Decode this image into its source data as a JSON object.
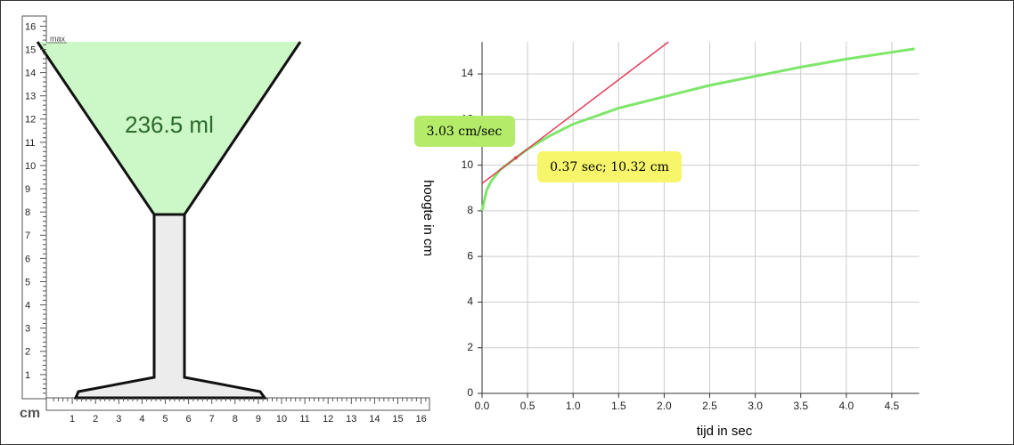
{
  "glass": {
    "volume_label": "236.5 ml",
    "max_label": "max",
    "unit_label": "cm",
    "ruler_y_labels": [
      "1",
      "2",
      "3",
      "4",
      "5",
      "6",
      "7",
      "8",
      "9",
      "10",
      "11",
      "12",
      "13",
      "14",
      "15",
      "16"
    ],
    "ruler_x_labels": [
      "1",
      "2",
      "3",
      "4",
      "5",
      "6",
      "7",
      "8",
      "9",
      "10",
      "11",
      "12",
      "13",
      "14",
      "15",
      "16"
    ]
  },
  "chart_data": {
    "type": "line",
    "xlabel": "tijd in sec",
    "ylabel": "hoogte in cm",
    "x": [
      0,
      0.05,
      0.1,
      0.2,
      0.37,
      0.5,
      0.75,
      1.0,
      1.5,
      2.0,
      2.5,
      3.0,
      3.5,
      4.0,
      4.5,
      4.75
    ],
    "series": [
      {
        "color": "#7ee66a",
        "values": [
          8.0,
          8.9,
          9.3,
          9.8,
          10.32,
          10.7,
          11.3,
          11.8,
          12.5,
          13.0,
          13.5,
          13.9,
          14.3,
          14.65,
          14.95,
          15.1
        ]
      }
    ],
    "tangent": {
      "x": 0.37,
      "y": 10.32,
      "slope": 3.03,
      "color": "#e0405a",
      "point_label": "0.37 sec; 10.32 cm",
      "slope_label": "3.03 cm/sec"
    },
    "xlim": [
      0,
      4.8
    ],
    "ylim": [
      0,
      15.4
    ],
    "xticks": [
      {
        "value": 0,
        "label": "0.0"
      },
      {
        "value": 0.5,
        "label": "0.5"
      },
      {
        "value": 1,
        "label": "1.0"
      },
      {
        "value": 1.5,
        "label": "1.5"
      },
      {
        "value": 2,
        "label": "2.0"
      },
      {
        "value": 2.5,
        "label": "2.5"
      },
      {
        "value": 3,
        "label": "3.0"
      },
      {
        "value": 3.5,
        "label": "3.5"
      },
      {
        "value": 4,
        "label": "4.0"
      },
      {
        "value": 4.5,
        "label": "4.5"
      }
    ],
    "yticks": [
      0,
      2,
      4,
      6,
      8,
      10,
      12,
      14
    ],
    "grid": true
  }
}
